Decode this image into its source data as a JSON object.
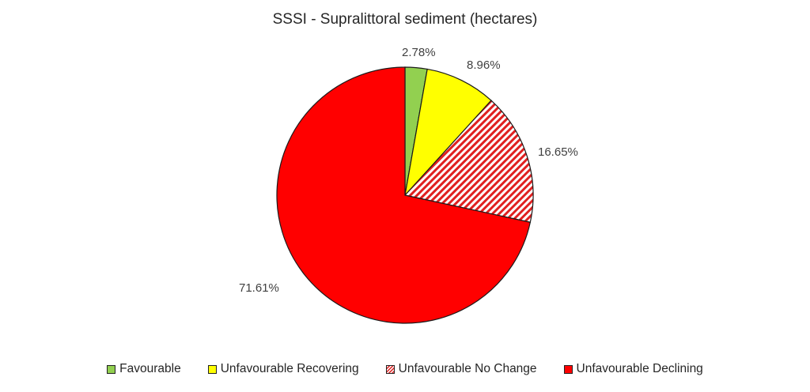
{
  "chart_data": {
    "type": "pie",
    "title": "SSSI - Supralittoral sediment (hectares)",
    "categories": [
      "Favourable",
      "Unfavourable Recovering",
      "Unfavourable No Change",
      "Unfavourable Declining"
    ],
    "values": [
      2.78,
      8.96,
      16.65,
      71.61
    ],
    "labels": [
      "2.78%",
      "8.96%",
      "16.65%",
      "71.61%"
    ],
    "colors": [
      "#92d050",
      "#ffff00",
      "hatch-red",
      "#ff0000"
    ],
    "start_angle": "12 o'clock, clockwise",
    "legend_position": "bottom"
  },
  "legend": [
    {
      "label": "Favourable",
      "color": "#92d050"
    },
    {
      "label": "Unfavourable Recovering",
      "color": "#ffff00"
    },
    {
      "label": "Unfavourable No Change",
      "color": "hatch-red"
    },
    {
      "label": "Unfavourable Declining",
      "color": "#ff0000"
    }
  ]
}
